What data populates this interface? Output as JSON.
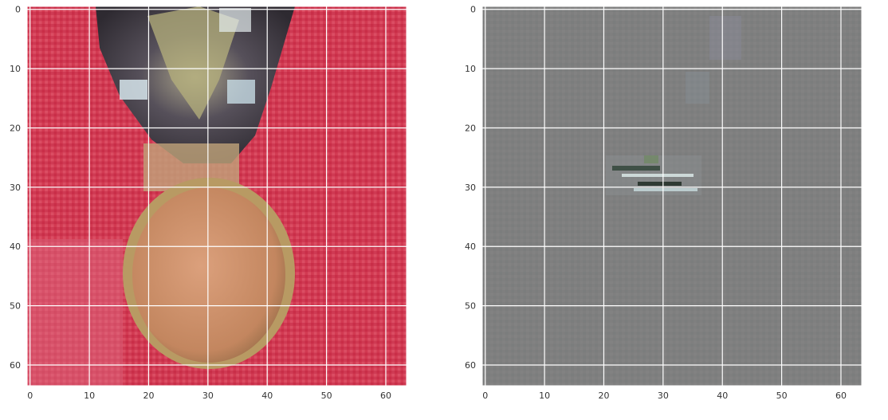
{
  "panels": [
    {
      "name": "left-image-panel",
      "content": "red-background-egg-and-jewel-image",
      "x_ticks": [
        "0",
        "10",
        "20",
        "30",
        "40",
        "50",
        "60"
      ],
      "y_ticks": [
        "0",
        "10",
        "20",
        "30",
        "40",
        "50",
        "60"
      ]
    },
    {
      "name": "right-image-panel",
      "content": "gray-difference-map-image",
      "x_ticks": [
        "0",
        "10",
        "20",
        "30",
        "40",
        "50",
        "60"
      ],
      "y_ticks": [
        "0",
        "10",
        "20",
        "30",
        "40",
        "50",
        "60"
      ]
    }
  ],
  "colors": {
    "grid": "#ffffff",
    "left_background": "#cc2f4a",
    "egg": "#c98a66",
    "jewel_dark": "#3b3336",
    "right_background": "#808080"
  }
}
